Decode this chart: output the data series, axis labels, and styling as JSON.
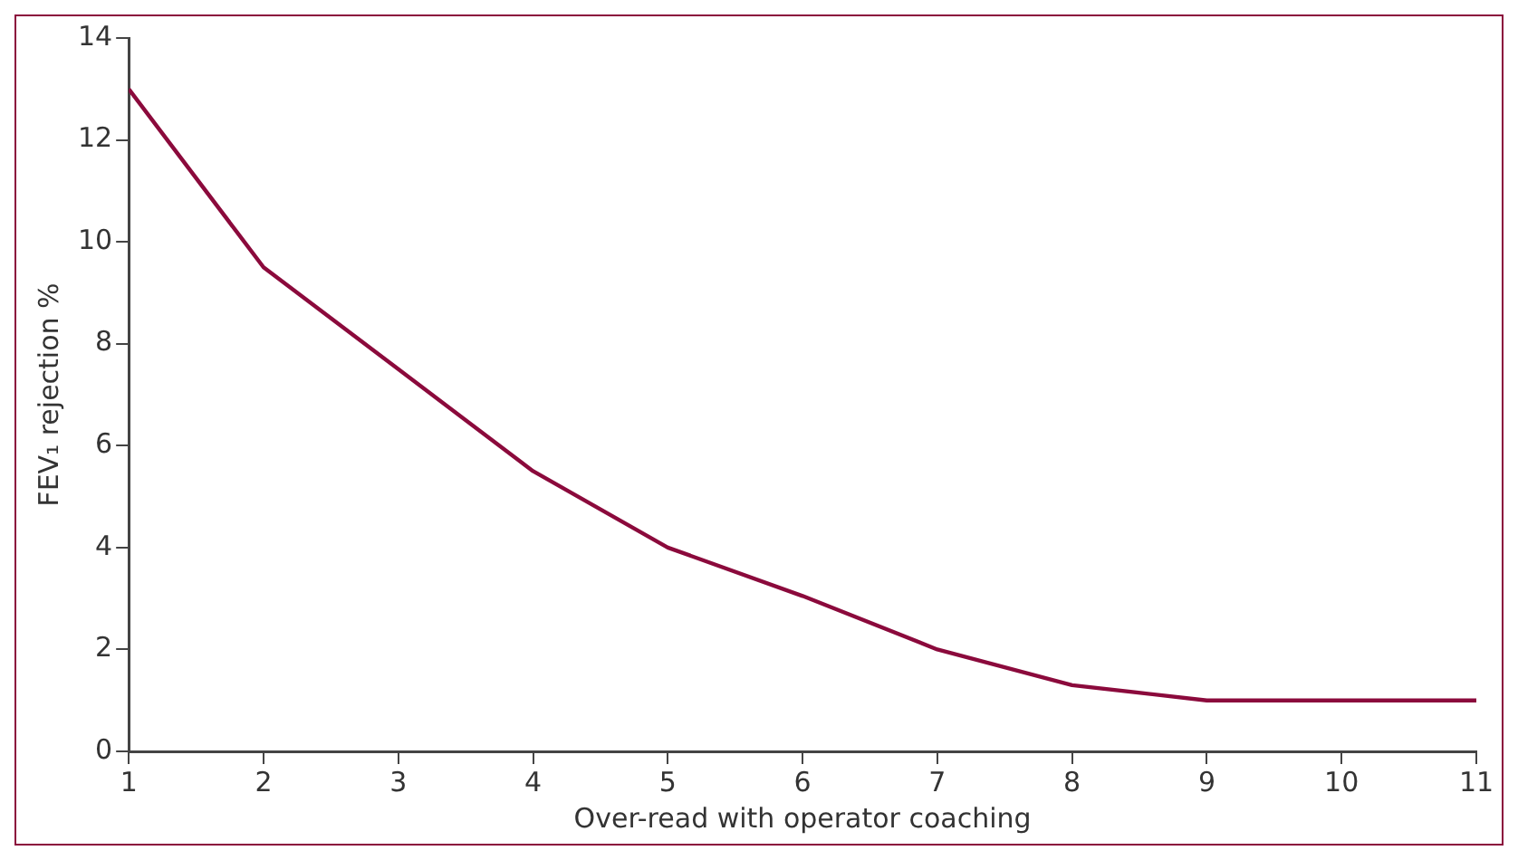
{
  "chart_data": {
    "type": "line",
    "xlabel": "Over-read with operator coaching",
    "ylabel": "FEV₁ rejection %",
    "x": [
      1,
      2,
      3,
      4,
      5,
      6,
      7,
      8,
      9,
      10,
      11
    ],
    "series": [
      {
        "color": "#8b0a3c",
        "values": [
          13,
          9.5,
          7.5,
          5.5,
          4,
          3.05,
          2,
          1.3,
          1,
          1,
          1
        ]
      }
    ],
    "xlim": [
      1,
      11
    ],
    "xticks": [
      1,
      2,
      3,
      4,
      5,
      6,
      7,
      8,
      9,
      10,
      11
    ],
    "ylim": [
      0,
      14
    ],
    "yticks": [
      0,
      2,
      4,
      6,
      8,
      10,
      12,
      14
    ],
    "grid": false,
    "legend": false,
    "marker": "none",
    "line_style": "solid"
  }
}
